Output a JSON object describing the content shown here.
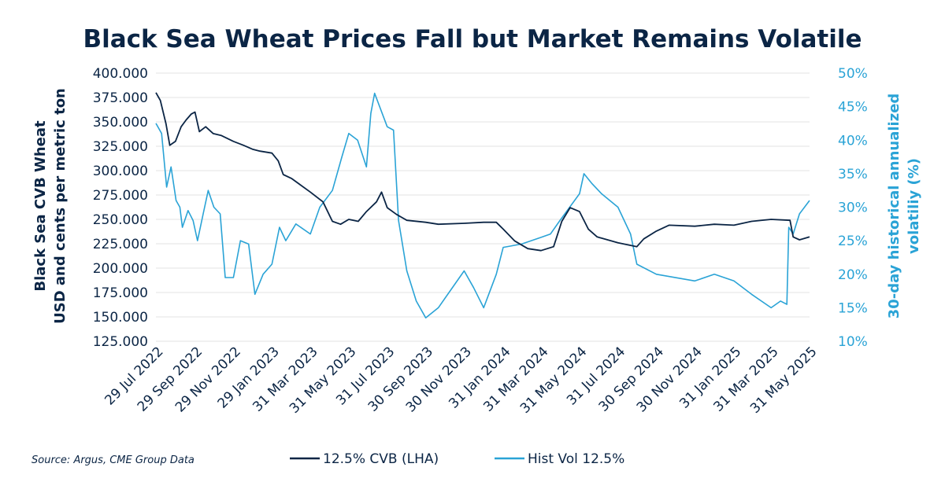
{
  "chart_data": {
    "type": "line",
    "title": "Black Sea Wheat Prices Fall but Market Remains Volatile",
    "ylabel_left": [
      "Black Sea CVB Wheat",
      "USD and cents per metric ton"
    ],
    "ylabel_right": [
      "30-day historical annualized",
      "volatiliy (%)"
    ],
    "ylim_left": [
      125,
      400
    ],
    "ylim_right": [
      10,
      50
    ],
    "y_ticks_left": [
      "400.000",
      "375.000",
      "350.000",
      "325.000",
      "300.000",
      "275.000",
      "250.000",
      "225.000",
      "200.000",
      "175.000",
      "150.000",
      "125.000"
    ],
    "y_ticks_right": [
      "50%",
      "45%",
      "40%",
      "35%",
      "30%",
      "25%",
      "20%",
      "15%",
      "10%"
    ],
    "x_ticks": [
      "29 Jul 2022",
      "29 Sep 2022",
      "29 Nov 2022",
      "29 Jan 2023",
      "31 Mar 2023",
      "31 May 2023",
      "31 Jul 2023",
      "30 Sep 2023",
      "30 Nov 2023",
      "31 Jan 2024",
      "31 Mar 2024",
      "31 May 2024",
      "31 Jul 2024",
      "30 Sep 2024",
      "30 Nov 2024",
      "31 Jan 2025",
      "31 Mar 2025",
      "31 May 2025"
    ],
    "grid": "horizontal",
    "legend_position": "bottom-center",
    "colors": {
      "cvb": "#0b2545",
      "vol": "#2aa3d6"
    },
    "series": [
      {
        "name": "12.5% CVB (LHA)",
        "axis": "left",
        "points": [
          [
            "29 Jul 2022",
            380
          ],
          [
            "5 Aug 2022",
            372
          ],
          [
            "14 Aug 2022",
            348
          ],
          [
            "20 Aug 2022",
            326
          ],
          [
            "29 Aug 2022",
            330
          ],
          [
            "7 Sep 2022",
            345
          ],
          [
            "15 Sep 2022",
            352
          ],
          [
            "23 Sep 2022",
            358
          ],
          [
            "29 Sep 2022",
            360
          ],
          [
            "6 Oct 2022",
            340
          ],
          [
            "16 Oct 2022",
            345
          ],
          [
            "28 Oct 2022",
            338
          ],
          [
            "10 Nov 2022",
            336
          ],
          [
            "29 Nov 2022",
            330
          ],
          [
            "15 Dec 2022",
            326
          ],
          [
            "29 Dec 2022",
            322
          ],
          [
            "10 Jan 2023",
            320
          ],
          [
            "29 Jan 2023",
            318
          ],
          [
            "8 Feb 2023",
            310
          ],
          [
            "16 Feb 2023",
            296
          ],
          [
            "1 Mar 2023",
            292
          ],
          [
            "16 Mar 2023",
            285
          ],
          [
            "31 Mar 2023",
            278
          ],
          [
            "20 Apr 2023",
            268
          ],
          [
            "5 May 2023",
            248
          ],
          [
            "18 May 2023",
            245
          ],
          [
            "31 May 2023",
            250
          ],
          [
            "15 Jun 2023",
            248
          ],
          [
            "28 Jun 2023",
            258
          ],
          [
            "14 Jul 2023",
            268
          ],
          [
            "22 Jul 2023",
            278
          ],
          [
            "31 Jul 2023",
            262
          ],
          [
            "15 Aug 2023",
            255
          ],
          [
            "31 Aug 2023",
            249
          ],
          [
            "30 Sep 2023",
            247
          ],
          [
            "20 Oct 2023",
            245
          ],
          [
            "30 Nov 2023",
            246
          ],
          [
            "31 Dec 2023",
            247
          ],
          [
            "20 Jan 2024",
            247
          ],
          [
            "31 Jan 2024",
            240
          ],
          [
            "18 Feb 2024",
            228
          ],
          [
            "10 Mar 2024",
            220
          ],
          [
            "31 Mar 2024",
            218
          ],
          [
            "20 Apr 2024",
            222
          ],
          [
            "3 May 2024",
            248
          ],
          [
            "16 May 2024",
            262
          ],
          [
            "31 May 2024",
            258
          ],
          [
            "14 Jun 2024",
            240
          ],
          [
            "28 Jun 2024",
            232
          ],
          [
            "31 Jul 2024",
            226
          ],
          [
            "30 Aug 2024",
            222
          ],
          [
            "10 Sep 2024",
            230
          ],
          [
            "30 Sep 2024",
            238
          ],
          [
            "20 Oct 2024",
            244
          ],
          [
            "30 Nov 2024",
            243
          ],
          [
            "31 Dec 2024",
            245
          ],
          [
            "31 Jan 2025",
            244
          ],
          [
            "28 Feb 2025",
            248
          ],
          [
            "31 Mar 2025",
            250
          ],
          [
            "30 Apr 2025",
            249
          ],
          [
            "5 May 2025",
            232
          ],
          [
            "15 May 2025",
            229
          ],
          [
            "31 May 2025",
            232
          ]
        ]
      },
      {
        "name": "Hist Vol 12.5%",
        "axis": "right",
        "points": [
          [
            "29 Jul 2022",
            42.5
          ],
          [
            "7 Aug 2022",
            41
          ],
          [
            "15 Aug 2022",
            33
          ],
          [
            "22 Aug 2022",
            36
          ],
          [
            "30 Aug 2022",
            31
          ],
          [
            "5 Sep 2022",
            30
          ],
          [
            "9 Sep 2022",
            27
          ],
          [
            "18 Sep 2022",
            29.5
          ],
          [
            "26 Sep 2022",
            28
          ],
          [
            "3 Oct 2022",
            25
          ],
          [
            "12 Oct 2022",
            29
          ],
          [
            "20 Oct 2022",
            32.5
          ],
          [
            "29 Oct 2022",
            30
          ],
          [
            "8 Nov 2022",
            29
          ],
          [
            "16 Nov 2022",
            19.5
          ],
          [
            "29 Nov 2022",
            19.5
          ],
          [
            "10 Dec 2022",
            25
          ],
          [
            "23 Dec 2022",
            24.5
          ],
          [
            "2 Jan 2023",
            17
          ],
          [
            "15 Jan 2023",
            20
          ],
          [
            "29 Jan 2023",
            21.5
          ],
          [
            "10 Feb 2023",
            27
          ],
          [
            "20 Feb 2023",
            25
          ],
          [
            "8 Mar 2023",
            27.5
          ],
          [
            "31 Mar 2023",
            26
          ],
          [
            "15 Apr 2023",
            30
          ],
          [
            "5 May 2023",
            32.5
          ],
          [
            "20 May 2023",
            37.5
          ],
          [
            "31 May 2023",
            41
          ],
          [
            "14 Jun 2023",
            40
          ],
          [
            "28 Jun 2023",
            36
          ],
          [
            "5 Jul 2023",
            44
          ],
          [
            "11 Jul 2023",
            47
          ],
          [
            "31 Jul 2023",
            42
          ],
          [
            "10 Aug 2023",
            41.5
          ],
          [
            "18 Aug 2023",
            28
          ],
          [
            "31 Aug 2023",
            20.5
          ],
          [
            "15 Sep 2023",
            16
          ],
          [
            "30 Sep 2023",
            13.5
          ],
          [
            "20 Oct 2023",
            15
          ],
          [
            "30 Nov 2023",
            20.5
          ],
          [
            "15 Dec 2023",
            18
          ],
          [
            "31 Dec 2023",
            15
          ],
          [
            "20 Jan 2024",
            20
          ],
          [
            "31 Jan 2024",
            24
          ],
          [
            "29 Feb 2024",
            24.5
          ],
          [
            "31 Mar 2024",
            25.5
          ],
          [
            "15 Apr 2024",
            26
          ],
          [
            "30 Apr 2024",
            28
          ],
          [
            "31 May 2024",
            32
          ],
          [
            "7 Jun 2024",
            35
          ],
          [
            "20 Jun 2024",
            33.5
          ],
          [
            "5 Jul 2024",
            32
          ],
          [
            "31 Jul 2024",
            30
          ],
          [
            "20 Aug 2024",
            26
          ],
          [
            "30 Aug 2024",
            21.5
          ],
          [
            "30 Sep 2024",
            20
          ],
          [
            "30 Nov 2024",
            19
          ],
          [
            "31 Dec 2024",
            20
          ],
          [
            "31 Jan 2025",
            19
          ],
          [
            "28 Feb 2025",
            17
          ],
          [
            "31 Mar 2025",
            15
          ],
          [
            "15 Apr 2025",
            16
          ],
          [
            "25 Apr 2025",
            15.5
          ],
          [
            "28 Apr 2025",
            27
          ],
          [
            "5 May 2025",
            26
          ],
          [
            "15 May 2025",
            29
          ],
          [
            "31 May 2025",
            31
          ]
        ]
      }
    ]
  },
  "source_text": "Source: Argus, CME Group Data",
  "legend": {
    "cvb_label": "12.5% CVB (LHA)",
    "vol_label": "Hist Vol 12.5%"
  }
}
